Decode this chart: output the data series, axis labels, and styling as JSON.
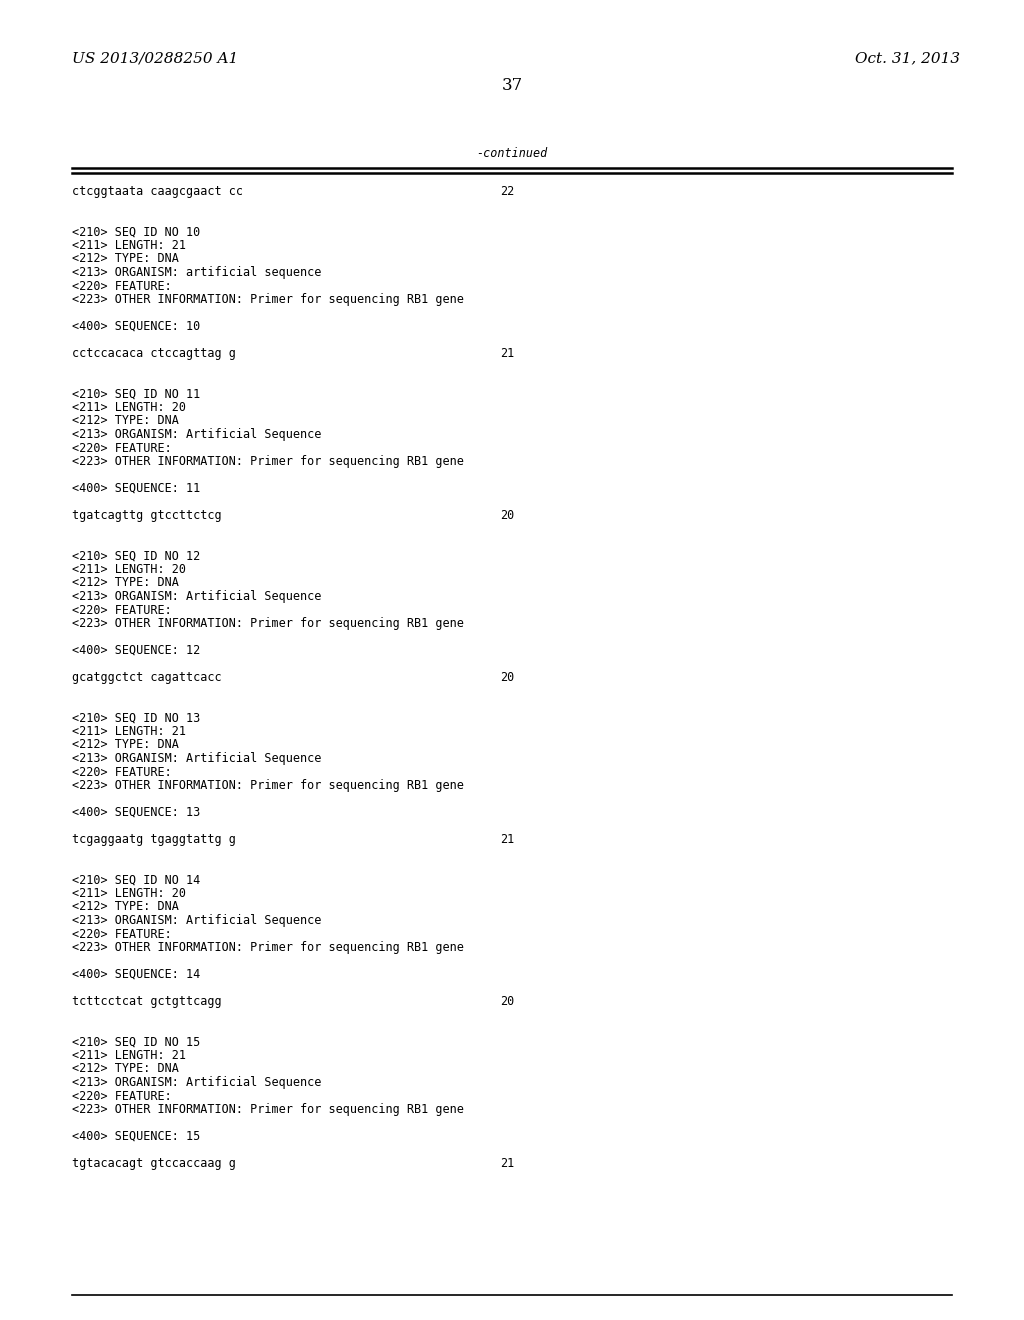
{
  "background_color": "#ffffff",
  "top_left_text": "US 2013/0288250 A1",
  "top_right_text": "Oct. 31, 2013",
  "page_number": "37",
  "continued_label": "-continued",
  "font_size_header": 11,
  "font_size_body": 8.5,
  "font_size_page": 12,
  "lines": [
    {
      "text": "ctcggtaata caagcgaact cc",
      "num": "22",
      "type": "sequence"
    },
    {
      "text": ""
    },
    {
      "text": ""
    },
    {
      "text": "<210> SEQ ID NO 10",
      "type": "info"
    },
    {
      "text": "<211> LENGTH: 21",
      "type": "info"
    },
    {
      "text": "<212> TYPE: DNA",
      "type": "info"
    },
    {
      "text": "<213> ORGANISM: artificial sequence",
      "type": "info"
    },
    {
      "text": "<220> FEATURE:",
      "type": "info"
    },
    {
      "text": "<223> OTHER INFORMATION: Primer for sequencing RB1 gene",
      "type": "info"
    },
    {
      "text": ""
    },
    {
      "text": "<400> SEQUENCE: 10",
      "type": "info"
    },
    {
      "text": ""
    },
    {
      "text": "cctccacaca ctccagttag g",
      "num": "21",
      "type": "sequence"
    },
    {
      "text": ""
    },
    {
      "text": ""
    },
    {
      "text": "<210> SEQ ID NO 11",
      "type": "info"
    },
    {
      "text": "<211> LENGTH: 20",
      "type": "info"
    },
    {
      "text": "<212> TYPE: DNA",
      "type": "info"
    },
    {
      "text": "<213> ORGANISM: Artificial Sequence",
      "type": "info"
    },
    {
      "text": "<220> FEATURE:",
      "type": "info"
    },
    {
      "text": "<223> OTHER INFORMATION: Primer for sequencing RB1 gene",
      "type": "info"
    },
    {
      "text": ""
    },
    {
      "text": "<400> SEQUENCE: 11",
      "type": "info"
    },
    {
      "text": ""
    },
    {
      "text": "tgatcagttg gtccttctcg",
      "num": "20",
      "type": "sequence"
    },
    {
      "text": ""
    },
    {
      "text": ""
    },
    {
      "text": "<210> SEQ ID NO 12",
      "type": "info"
    },
    {
      "text": "<211> LENGTH: 20",
      "type": "info"
    },
    {
      "text": "<212> TYPE: DNA",
      "type": "info"
    },
    {
      "text": "<213> ORGANISM: Artificial Sequence",
      "type": "info"
    },
    {
      "text": "<220> FEATURE:",
      "type": "info"
    },
    {
      "text": "<223> OTHER INFORMATION: Primer for sequencing RB1 gene",
      "type": "info"
    },
    {
      "text": ""
    },
    {
      "text": "<400> SEQUENCE: 12",
      "type": "info"
    },
    {
      "text": ""
    },
    {
      "text": "gcatggctct cagattcacc",
      "num": "20",
      "type": "sequence"
    },
    {
      "text": ""
    },
    {
      "text": ""
    },
    {
      "text": "<210> SEQ ID NO 13",
      "type": "info"
    },
    {
      "text": "<211> LENGTH: 21",
      "type": "info"
    },
    {
      "text": "<212> TYPE: DNA",
      "type": "info"
    },
    {
      "text": "<213> ORGANISM: Artificial Sequence",
      "type": "info"
    },
    {
      "text": "<220> FEATURE:",
      "type": "info"
    },
    {
      "text": "<223> OTHER INFORMATION: Primer for sequencing RB1 gene",
      "type": "info"
    },
    {
      "text": ""
    },
    {
      "text": "<400> SEQUENCE: 13",
      "type": "info"
    },
    {
      "text": ""
    },
    {
      "text": "tcgaggaatg tgaggtattg g",
      "num": "21",
      "type": "sequence"
    },
    {
      "text": ""
    },
    {
      "text": ""
    },
    {
      "text": "<210> SEQ ID NO 14",
      "type": "info"
    },
    {
      "text": "<211> LENGTH: 20",
      "type": "info"
    },
    {
      "text": "<212> TYPE: DNA",
      "type": "info"
    },
    {
      "text": "<213> ORGANISM: Artificial Sequence",
      "type": "info"
    },
    {
      "text": "<220> FEATURE:",
      "type": "info"
    },
    {
      "text": "<223> OTHER INFORMATION: Primer for sequencing RB1 gene",
      "type": "info"
    },
    {
      "text": ""
    },
    {
      "text": "<400> SEQUENCE: 14",
      "type": "info"
    },
    {
      "text": ""
    },
    {
      "text": "tcttcctcat gctgttcagg",
      "num": "20",
      "type": "sequence"
    },
    {
      "text": ""
    },
    {
      "text": ""
    },
    {
      "text": "<210> SEQ ID NO 15",
      "type": "info"
    },
    {
      "text": "<211> LENGTH: 21",
      "type": "info"
    },
    {
      "text": "<212> TYPE: DNA",
      "type": "info"
    },
    {
      "text": "<213> ORGANISM: Artificial Sequence",
      "type": "info"
    },
    {
      "text": "<220> FEATURE:",
      "type": "info"
    },
    {
      "text": "<223> OTHER INFORMATION: Primer for sequencing RB1 gene",
      "type": "info"
    },
    {
      "text": ""
    },
    {
      "text": "<400> SEQUENCE: 15",
      "type": "info"
    },
    {
      "text": ""
    },
    {
      "text": "tgtacacagt gtccaccaag g",
      "num": "21",
      "type": "sequence"
    }
  ]
}
